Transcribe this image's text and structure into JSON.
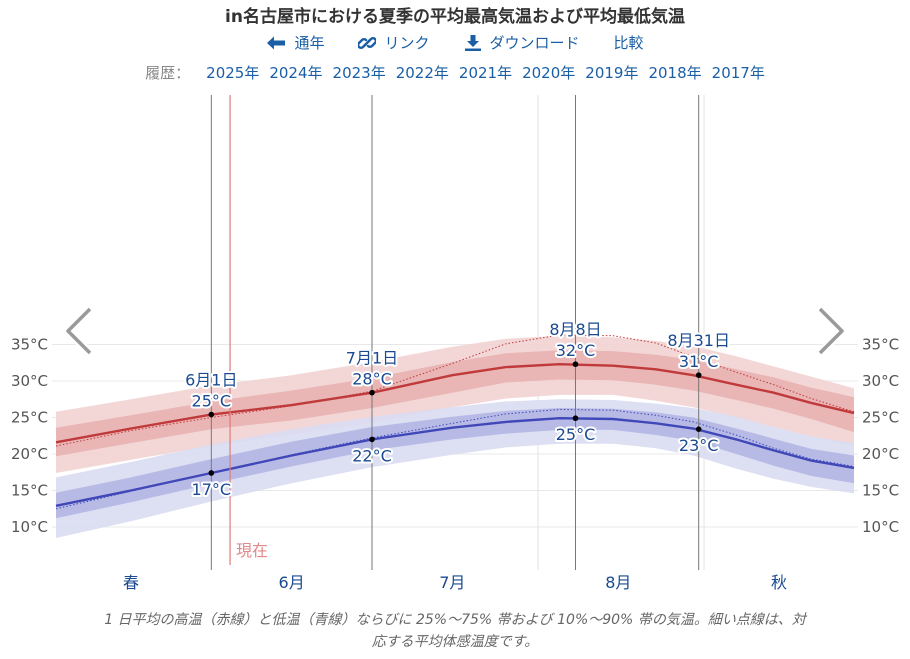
{
  "title": "in名古屋市における夏季の平均最高気温および平均最低気温",
  "toolbar": {
    "annual": "通年",
    "link": "リンク",
    "download": "ダウンロード",
    "compare": "比較"
  },
  "history": {
    "label": "履歴：",
    "years": [
      "2025年",
      "2024年",
      "2023年",
      "2022年",
      "2021年",
      "2020年",
      "2019年",
      "2018年",
      "2017年"
    ]
  },
  "caption_lines": [
    "1 日平均の高温（赤線）と低温（青線）ならびに 25%～75% 帯および 10%～90% 帯の気温。細い点線は、対",
    "応する平均体感温度です。"
  ],
  "icons": {
    "annual": "arrow-left-icon",
    "link": "link-icon",
    "download": "download-icon",
    "prev": "chevron-left-icon",
    "next": "chevron-right-icon"
  },
  "colors": {
    "high": "#c0393b",
    "high_band_inner": "#e8b1b1",
    "high_band_outer": "#f2d3d3",
    "low": "#4048b8",
    "low_band_inner": "#b4b6e4",
    "low_band_outer": "#d9dbf2",
    "now": "#e07a7a",
    "link": "#1a5fa5"
  },
  "chart_data": {
    "type": "line",
    "x_unit": "day",
    "x_range": [
      -29,
      120
    ],
    "ylim": [
      7,
      37
    ],
    "yticks": [
      10,
      15,
      20,
      25,
      30,
      35
    ],
    "ytick_labels": [
      "10°C",
      "15°C",
      "20°C",
      "25°C",
      "30°C",
      "35°C"
    ],
    "month_labels": [
      {
        "label": "春",
        "x": -15
      },
      {
        "label": "6月",
        "x": 15
      },
      {
        "label": "7月",
        "x": 45
      },
      {
        "label": "8月",
        "x": 76
      },
      {
        "label": "秋",
        "x": 106
      }
    ],
    "month_dividers": [
      30,
      61,
      92
    ],
    "now_marker": {
      "label": "現在",
      "x": 3.5
    },
    "series": [
      {
        "key": "high",
        "x": [
          -29,
          -15,
          0,
          15,
          30,
          45,
          55,
          65,
          75,
          83,
          90,
          98,
          105,
          112,
          120
        ],
        "mean": [
          21.6,
          23.5,
          25.4,
          26.7,
          28.4,
          30.8,
          31.9,
          32.3,
          32.1,
          31.6,
          30.8,
          29.5,
          28.4,
          27.0,
          25.6
        ],
        "p25": [
          19.7,
          21.5,
          23.4,
          24.6,
          26.3,
          28.4,
          29.8,
          30.2,
          30.1,
          29.5,
          28.7,
          27.4,
          26.2,
          24.8,
          23.0
        ],
        "p75": [
          23.6,
          25.3,
          27.2,
          28.7,
          30.4,
          32.6,
          33.8,
          34.2,
          34.1,
          33.6,
          32.9,
          31.6,
          30.5,
          29.1,
          27.8
        ],
        "p10": [
          17.4,
          19.2,
          21.1,
          22.7,
          24.3,
          26.4,
          27.6,
          28.1,
          28.1,
          27.3,
          26.4,
          25.0,
          23.7,
          22.4,
          21.1
        ],
        "p90": [
          25.8,
          27.5,
          29.4,
          30.8,
          32.6,
          34.7,
          35.8,
          36.2,
          36.0,
          35.5,
          34.8,
          33.4,
          32.0,
          30.6,
          29.0
        ],
        "feels": [
          21.1,
          23.2,
          25.0,
          26.6,
          28.6,
          32.4,
          35.1,
          36.3,
          36.2,
          35.2,
          33.3,
          31.2,
          29.5,
          27.6,
          25.8
        ]
      },
      {
        "key": "low",
        "x": [
          -29,
          -15,
          0,
          15,
          30,
          45,
          55,
          65,
          75,
          83,
          90,
          98,
          105,
          112,
          120
        ],
        "mean": [
          12.9,
          15.0,
          17.4,
          19.8,
          22.0,
          23.6,
          24.4,
          24.9,
          24.8,
          24.2,
          23.5,
          22.0,
          20.5,
          19.1,
          18.1
        ],
        "p25": [
          11.2,
          13.4,
          15.9,
          18.3,
          20.5,
          22.0,
          22.8,
          23.3,
          23.3,
          22.6,
          21.8,
          20.0,
          18.4,
          17.0,
          16.0
        ],
        "p75": [
          14.7,
          16.8,
          19.3,
          21.7,
          23.7,
          25.1,
          25.9,
          26.3,
          26.2,
          25.7,
          25.0,
          23.5,
          22.1,
          20.7,
          19.8
        ],
        "p10": [
          8.5,
          10.8,
          13.5,
          16.0,
          18.2,
          19.9,
          20.9,
          21.4,
          21.4,
          20.8,
          19.8,
          18.0,
          16.6,
          15.5,
          14.6
        ],
        "p90": [
          16.8,
          18.9,
          21.3,
          23.4,
          25.1,
          26.4,
          27.2,
          27.5,
          27.4,
          26.9,
          26.3,
          25.1,
          23.7,
          22.4,
          21.5
        ],
        "feels": [
          12.5,
          14.9,
          17.4,
          19.9,
          22.2,
          24.2,
          25.5,
          26.1,
          26.0,
          25.3,
          24.4,
          22.6,
          20.8,
          19.3,
          18.3
        ]
      }
    ],
    "annotations": [
      {
        "x": 0,
        "date": "6月1日",
        "high": 25,
        "high_y": 25.4,
        "low": 17,
        "low_y": 17.4,
        "high_above": true,
        "low_above": false
      },
      {
        "x": 30,
        "date": "7月1日",
        "high": 28,
        "high_y": 28.4,
        "low": 22,
        "low_y": 22.0,
        "high_above": true,
        "low_above": false
      },
      {
        "x": 68,
        "date": "8月8日",
        "high": 32,
        "high_y": 32.3,
        "low": 25,
        "low_y": 24.9,
        "high_above": true,
        "low_above": false
      },
      {
        "x": 91,
        "date": "8月31日",
        "high": 31,
        "high_y": 30.8,
        "low": 23,
        "low_y": 23.4,
        "high_above": true,
        "low_above": false
      }
    ]
  }
}
